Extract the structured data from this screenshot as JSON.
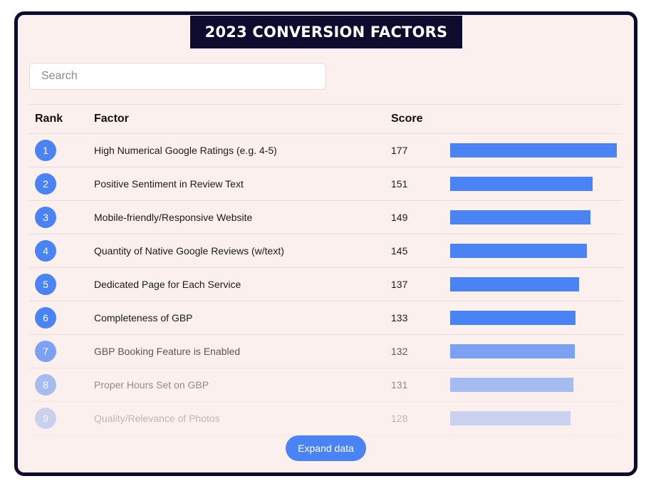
{
  "title": "2023 CONVERSION FACTORS",
  "search": {
    "placeholder": "Search",
    "value": ""
  },
  "columns": {
    "rank": "Rank",
    "factor": "Factor",
    "score": "Score"
  },
  "accent_color": "#4a84f4",
  "max_score": 177,
  "rows": [
    {
      "rank": "1",
      "factor": "High Numerical Google Ratings (e.g. 4-5)",
      "score": "177"
    },
    {
      "rank": "2",
      "factor": "Positive Sentiment in Review Text",
      "score": "151"
    },
    {
      "rank": "3",
      "factor": "Mobile-friendly/Responsive Website",
      "score": "149"
    },
    {
      "rank": "4",
      "factor": "Quantity of Native Google Reviews (w/text)",
      "score": "145"
    },
    {
      "rank": "5",
      "factor": "Dedicated Page for Each Service",
      "score": "137"
    },
    {
      "rank": "6",
      "factor": "Completeness of GBP",
      "score": "133"
    },
    {
      "rank": "7",
      "factor": "GBP Booking Feature is Enabled",
      "score": "132"
    },
    {
      "rank": "8",
      "factor": "Proper Hours Set on GBP",
      "score": "131"
    },
    {
      "rank": "9",
      "factor": "Quality/Relevance of Photos",
      "score": "128"
    }
  ],
  "expand_label": "Expand data"
}
